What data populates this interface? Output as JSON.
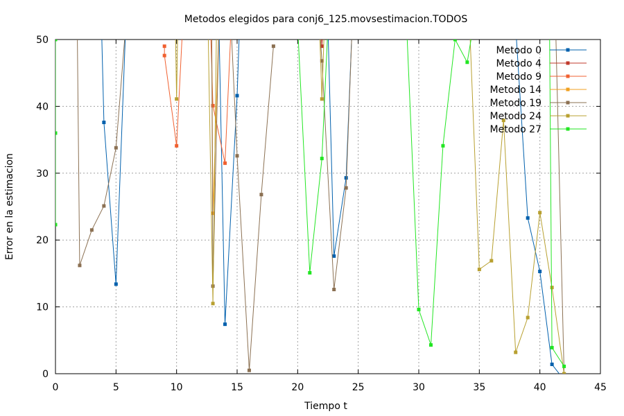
{
  "chart_data": {
    "type": "line",
    "title": "Metodos elegidos para conj6_125.movsestimacion.TODOS",
    "xlabel": "Tiempo t",
    "ylabel": "Error en la estimacion",
    "xlim": [
      0,
      45
    ],
    "ylim": [
      0,
      50
    ],
    "xticks": [
      0,
      5,
      10,
      15,
      20,
      25,
      30,
      35,
      40,
      45
    ],
    "yticks": [
      0,
      10,
      20,
      30,
      40,
      50
    ],
    "grid": true,
    "legend_position": "top-right",
    "series": [
      {
        "name": "Metodo 0",
        "color": "#0060ad",
        "points": [
          [
            3.8,
            52
          ],
          [
            4,
            37.6
          ],
          [
            5,
            13.4
          ],
          [
            5.8,
            52
          ],
          [
            null,
            null
          ],
          [
            13.5,
            52
          ],
          [
            14,
            7.4
          ],
          [
            15,
            41.6
          ],
          [
            15.2,
            52
          ],
          [
            null,
            null
          ],
          [
            22.5,
            52
          ],
          [
            23,
            17.6
          ],
          [
            24,
            29.3
          ],
          [
            24.5,
            52
          ],
          [
            null,
            null
          ],
          [
            38,
            52
          ],
          [
            39,
            23.3
          ],
          [
            40,
            15.3
          ],
          [
            41,
            1.4
          ],
          [
            41.6,
            0
          ]
        ]
      },
      {
        "name": "Metodo 4",
        "color": "#c0392b",
        "points": [
          [
            21.9,
            52
          ],
          [
            22,
            49
          ],
          [
            22.1,
            52
          ]
        ]
      },
      {
        "name": "Metodo 9",
        "color": "#f06030",
        "points": [
          [
            9,
            49
          ],
          [
            9,
            47.6
          ],
          [
            10,
            34.1
          ],
          [
            10.5,
            52
          ],
          [
            null,
            null
          ],
          [
            12.8,
            52
          ],
          [
            13,
            40.1
          ],
          [
            14,
            31.5
          ],
          [
            14.5,
            52
          ]
        ]
      },
      {
        "name": "Metodo 14",
        "color": "#f0a020",
        "points": [
          [
            12.9,
            52
          ],
          [
            13,
            24
          ],
          [
            13.5,
            52
          ]
        ]
      },
      {
        "name": "Metodo 19",
        "color": "#8b7052",
        "points": [
          [
            1.8,
            52
          ],
          [
            2,
            16.2
          ],
          [
            3,
            21.5
          ],
          [
            4,
            25.1
          ],
          [
            5,
            33.8
          ],
          [
            5.8,
            52
          ],
          [
            null,
            null
          ],
          [
            12.9,
            52
          ],
          [
            13,
            13.1
          ],
          [
            13.5,
            52
          ],
          [
            null,
            null
          ],
          [
            14.5,
            52
          ],
          [
            15,
            32.6
          ],
          [
            16,
            0.5
          ],
          [
            17,
            26.8
          ],
          [
            18,
            49
          ],
          [
            null,
            null
          ],
          [
            21.8,
            52
          ],
          [
            22,
            46.8
          ],
          [
            23,
            12.6
          ],
          [
            24,
            27.8
          ],
          [
            24.5,
            52
          ],
          [
            null,
            null
          ],
          [
            41.3,
            52
          ],
          [
            42,
            0
          ]
        ]
      },
      {
        "name": "Metodo 24",
        "color": "#b8a030",
        "points": [
          [
            9.9,
            52
          ],
          [
            10,
            41.1
          ],
          [
            10.1,
            52
          ],
          [
            null,
            null
          ],
          [
            12.6,
            52
          ],
          [
            13,
            10.5
          ],
          [
            13.3,
            52
          ],
          [
            null,
            null
          ],
          [
            21.8,
            52
          ],
          [
            22,
            41.1
          ],
          [
            22.2,
            52
          ],
          [
            null,
            null
          ],
          [
            34.2,
            52
          ],
          [
            35,
            15.6
          ],
          [
            36,
            16.9
          ],
          [
            37,
            37.9
          ],
          [
            38,
            3.2
          ],
          [
            39,
            8.4
          ],
          [
            40,
            24.1
          ],
          [
            41,
            12.9
          ],
          [
            42,
            0
          ]
        ]
      },
      {
        "name": "Metodo 27",
        "color": "#22e622",
        "points": [
          [
            0,
            50
          ],
          [
            0,
            22.3
          ],
          [
            0,
            36
          ]
        ]
      },
      {
        "name": "",
        "color": "#22e622",
        "points": [
          [
            20,
            52
          ],
          [
            21,
            15.1
          ],
          [
            22,
            32.2
          ],
          [
            22.5,
            52
          ],
          [
            null,
            null
          ],
          [
            29,
            52
          ],
          [
            30,
            9.6
          ],
          [
            31,
            4.3
          ],
          [
            32,
            34.1
          ],
          [
            33,
            50
          ],
          [
            34,
            46.6
          ],
          [
            34.5,
            52
          ],
          [
            null,
            null
          ],
          [
            40.8,
            52
          ],
          [
            41,
            3.9
          ],
          [
            42,
            1.1
          ]
        ]
      }
    ]
  }
}
